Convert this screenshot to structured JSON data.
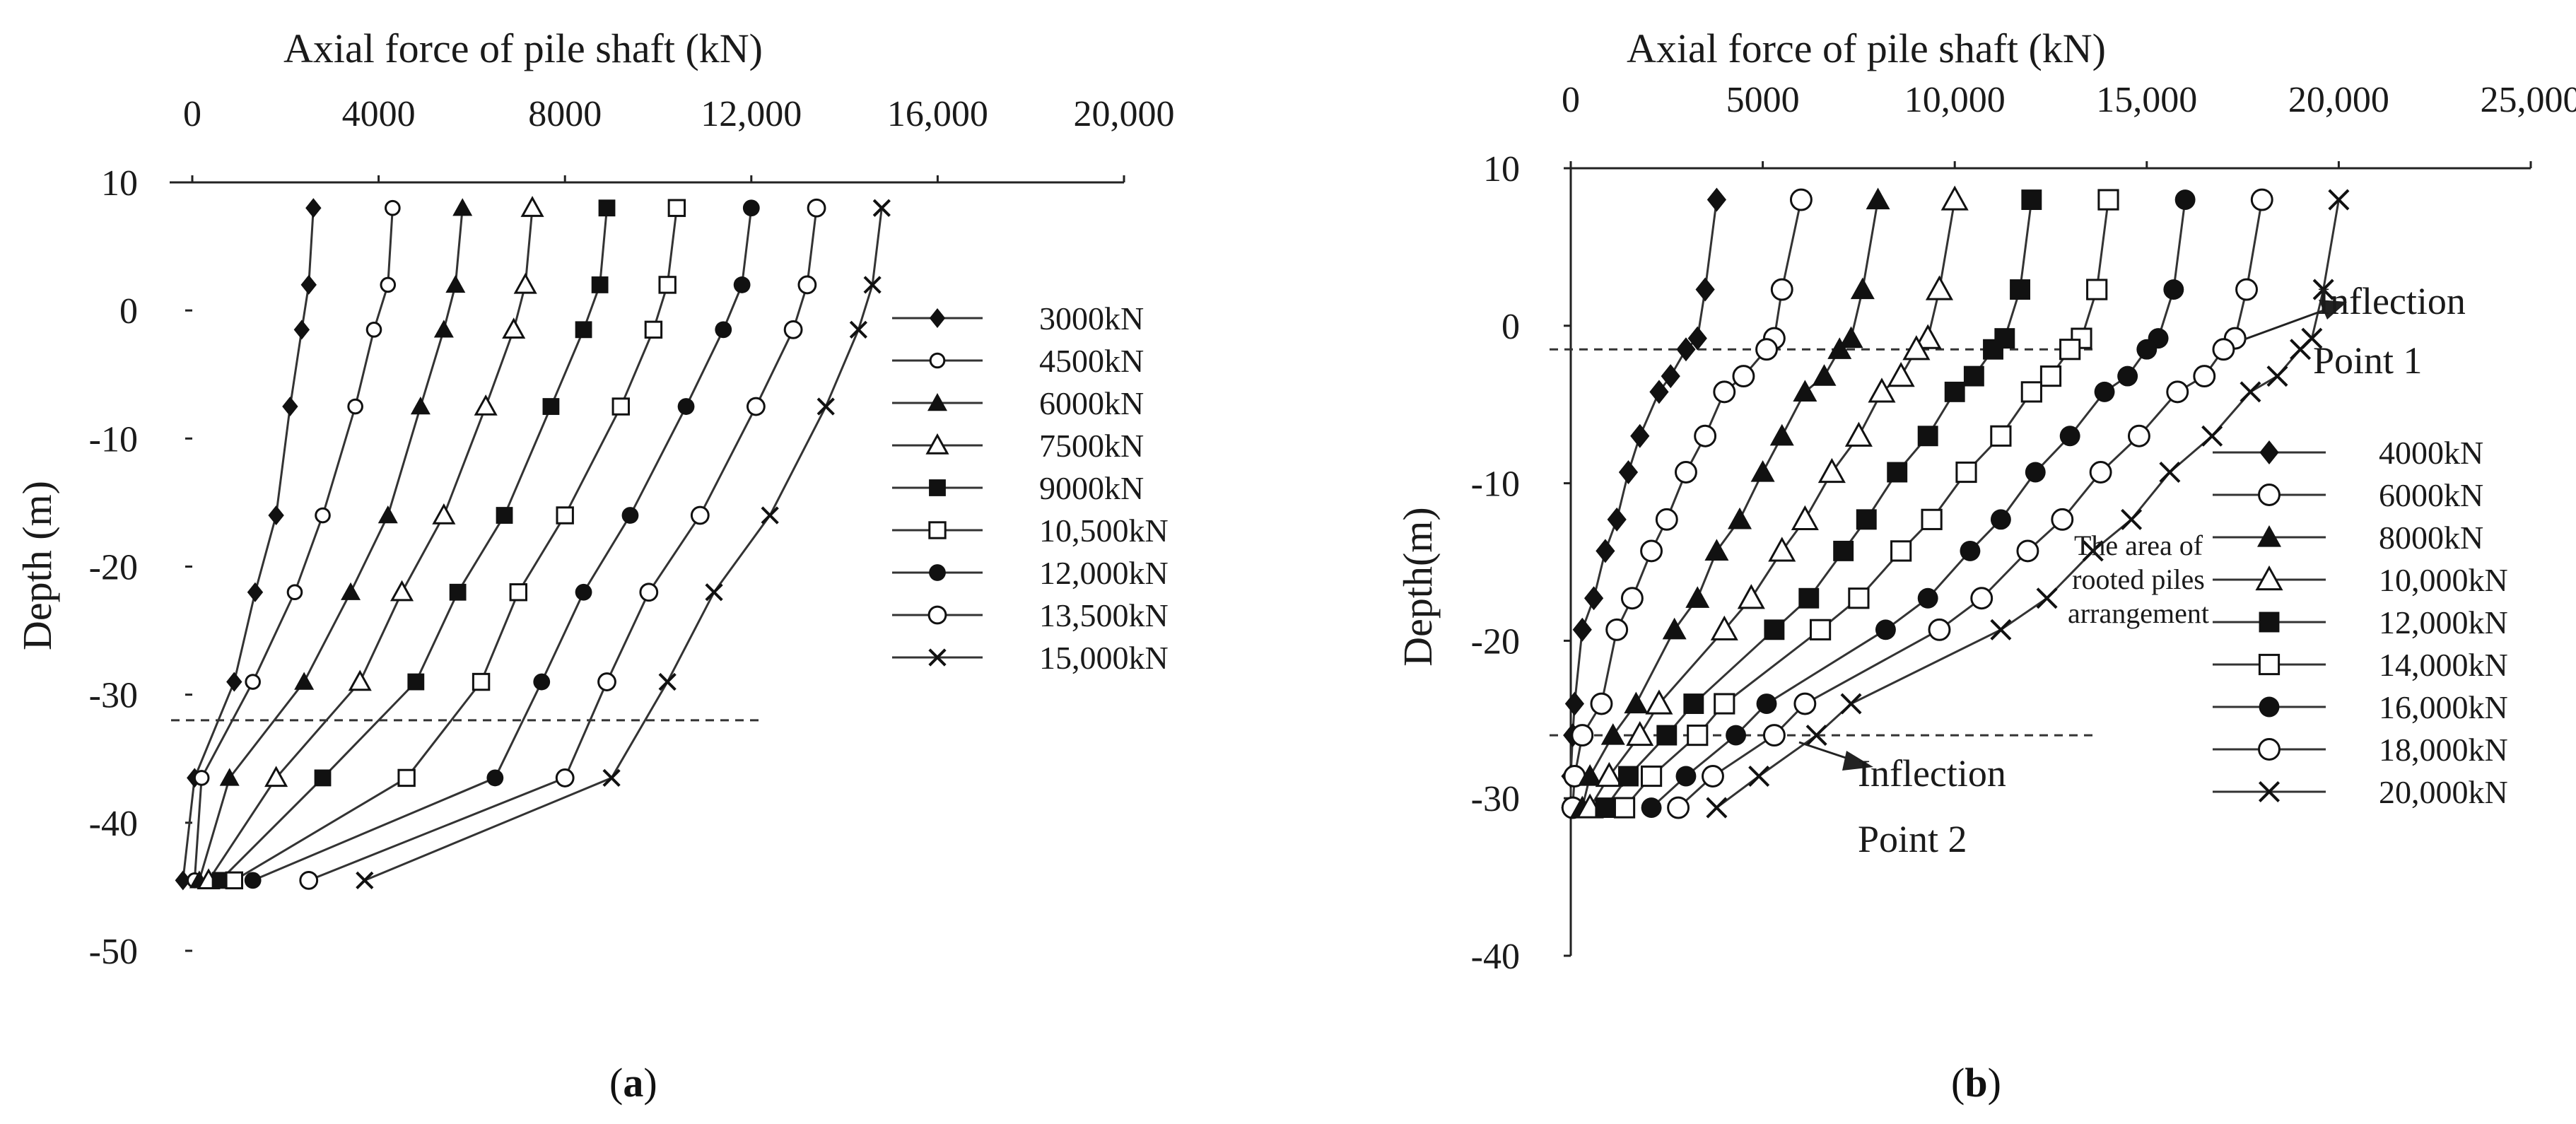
{
  "panels": [
    {
      "id": "a",
      "label_open": "(",
      "label_letter": "a",
      "label_close": ")",
      "title": "Axial force of pile shaft (kN)",
      "ylabel": "Depth (m)",
      "xlim": [
        0,
        20000
      ],
      "ylim": [
        -50,
        10
      ],
      "x_ticks": [
        0,
        4000,
        8000,
        12000,
        16000,
        20000
      ],
      "x_tick_labels": [
        "0",
        "4000",
        "8000",
        "12,000",
        "16,000",
        "20,000"
      ],
      "y_ticks": [
        10,
        0,
        -10,
        -20,
        -30,
        -40,
        -50
      ],
      "y_tick_labels": [
        "10",
        "0",
        "-10",
        "-20",
        "-30",
        "-40",
        "-50"
      ],
      "ref_lines": [
        -32
      ],
      "legend": [
        "3000kN",
        "4500kN",
        "6000kN",
        "7500kN",
        "9000kN",
        "10,500kN",
        "12,000kN",
        "13,500kN",
        "15,000kN"
      ],
      "annotations": []
    },
    {
      "id": "b",
      "label_open": "(",
      "label_letter": "b",
      "label_close": ")",
      "title": "Axial force of pile shaft (kN)",
      "ylabel": "Depth(m)",
      "xlim": [
        0,
        25000
      ],
      "ylim": [
        -40,
        10
      ],
      "x_ticks": [
        0,
        5000,
        10000,
        15000,
        20000,
        25000
      ],
      "x_tick_labels": [
        "0",
        "5000",
        "10,000",
        "15,000",
        "20,000",
        "25,000"
      ],
      "y_ticks": [
        10,
        0,
        -10,
        -20,
        -30,
        -40
      ],
      "y_tick_labels": [
        "10",
        "0",
        "-10",
        "-20",
        "-30",
        "-40"
      ],
      "ref_lines": [
        -1.5,
        -26
      ],
      "legend": [
        "4000kN",
        "6000kN",
        "8000kN",
        "10,000kN",
        "12,000kN",
        "14,000kN",
        "16,000kN",
        "18,000kN",
        "20,000kN"
      ],
      "annotations": [
        {
          "lines": [
            "Inflection",
            "Point 1"
          ],
          "size": 46
        },
        {
          "lines": [
            "The area of",
            "rooted piles",
            "arrangement"
          ],
          "size": 34
        },
        {
          "lines": [
            "Inflection",
            "Point 2"
          ],
          "size": 46
        }
      ]
    }
  ],
  "chart_data": [
    {
      "type": "line",
      "title": "Axial force of pile shaft (kN)",
      "xlabel": "Axial force of pile shaft (kN)",
      "ylabel": "Depth (m)",
      "xlim": [
        0,
        20000
      ],
      "ylim": [
        -50,
        10
      ],
      "grid": false,
      "legend_position": "right",
      "markers": [
        "diamond",
        "circle-open-small",
        "triangle",
        "triangle-open",
        "square",
        "square-open",
        "circle",
        "circle-open",
        "x"
      ],
      "series": [
        {
          "name": "3000kN",
          "x": [
            2600,
            2500,
            2350,
            2100,
            1800,
            1350,
            900,
            50,
            -200
          ],
          "y": [
            8,
            2,
            -1.5,
            -7.5,
            -16,
            -22,
            -29,
            -36.5,
            -44.5
          ]
        },
        {
          "name": "4500kN",
          "x": [
            4300,
            4200,
            3900,
            3500,
            2800,
            2200,
            1300,
            200,
            50
          ],
          "y": [
            8,
            2,
            -1.5,
            -7.5,
            -16,
            -22,
            -29,
            -36.5,
            -44.5
          ]
        },
        {
          "name": "6000kN",
          "x": [
            5800,
            5650,
            5400,
            4900,
            4200,
            3400,
            2400,
            800,
            150
          ],
          "y": [
            8,
            2,
            -1.5,
            -7.5,
            -16,
            -22,
            -29,
            -36.5,
            -44.5
          ]
        },
        {
          "name": "7500kN",
          "x": [
            7300,
            7150,
            6900,
            6300,
            5400,
            4500,
            3600,
            1800,
            350
          ],
          "y": [
            8,
            2,
            -1.5,
            -7.5,
            -16,
            -22,
            -29,
            -36.5,
            -44.5
          ]
        },
        {
          "name": "9000kN",
          "x": [
            8900,
            8750,
            8400,
            7700,
            6700,
            5700,
            4800,
            2800,
            600
          ],
          "y": [
            8,
            2,
            -1.5,
            -7.5,
            -16,
            -22,
            -29,
            -36.5,
            -44.5
          ]
        },
        {
          "name": "10,500kN",
          "x": [
            10400,
            10200,
            9900,
            9200,
            8000,
            7000,
            6200,
            4600,
            900
          ],
          "y": [
            8,
            2,
            -1.5,
            -7.5,
            -16,
            -22,
            -29,
            -36.5,
            -44.5
          ]
        },
        {
          "name": "12,000kN",
          "x": [
            12000,
            11800,
            11400,
            10600,
            9400,
            8400,
            7500,
            6500,
            1300
          ],
          "y": [
            8,
            2,
            -1.5,
            -7.5,
            -16,
            -22,
            -29,
            -36.5,
            -44.5
          ]
        },
        {
          "name": "13,500kN",
          "x": [
            13400,
            13200,
            12900,
            12100,
            10900,
            9800,
            8900,
            8000,
            2500
          ],
          "y": [
            8,
            2,
            -1.5,
            -7.5,
            -16,
            -22,
            -29,
            -36.5,
            -44.5
          ]
        },
        {
          "name": "15,000kN",
          "x": [
            14800,
            14600,
            14300,
            13600,
            12400,
            11200,
            10200,
            9000,
            3700
          ],
          "y": [
            8,
            2,
            -1.5,
            -7.5,
            -16,
            -22,
            -29,
            -36.5,
            -44.5
          ]
        }
      ]
    },
    {
      "type": "line",
      "title": "Axial force of pile shaft (kN)",
      "xlabel": "Axial force of pile shaft (kN)",
      "ylabel": "Depth(m)",
      "xlim": [
        0,
        25000
      ],
      "ylim": [
        -40,
        10
      ],
      "grid": false,
      "legend_position": "right",
      "markers": [
        "diamond",
        "circle-open",
        "triangle",
        "triangle-open",
        "square",
        "square-open",
        "circle",
        "circle-open",
        "x"
      ],
      "series": [
        {
          "name": "4000kN",
          "x": [
            3800,
            3500,
            3300,
            3000,
            2600,
            2300,
            1800,
            1500,
            1200,
            900,
            600,
            300,
            100,
            50,
            0,
            0
          ],
          "y": [
            8,
            2.3,
            -0.8,
            -1.5,
            -3.2,
            -4.2,
            -7,
            -9.3,
            -12.3,
            -14.3,
            -17.3,
            -19.3,
            -24,
            -26,
            -28.6,
            -30.6
          ]
        },
        {
          "name": "6000kN",
          "x": [
            6000,
            5500,
            5300,
            5100,
            4500,
            4000,
            3500,
            3000,
            2500,
            2100,
            1600,
            1200,
            800,
            300,
            100,
            50
          ],
          "y": [
            8,
            2.3,
            -0.8,
            -1.5,
            -3.2,
            -4.2,
            -7,
            -9.3,
            -12.3,
            -14.3,
            -17.3,
            -19.3,
            -24,
            -26,
            -28.6,
            -30.6
          ]
        },
        {
          "name": "8000kN",
          "x": [
            8000,
            7600,
            7300,
            7000,
            6600,
            6100,
            5500,
            5000,
            4400,
            3800,
            3300,
            2700,
            1700,
            1100,
            500,
            300
          ],
          "y": [
            8,
            2.3,
            -0.8,
            -1.5,
            -3.2,
            -4.2,
            -7,
            -9.3,
            -12.3,
            -14.3,
            -17.3,
            -19.3,
            -24,
            -26,
            -28.6,
            -30.6
          ]
        },
        {
          "name": "10,000kN",
          "x": [
            10000,
            9600,
            9300,
            9000,
            8600,
            8100,
            7500,
            6800,
            6100,
            5500,
            4700,
            4000,
            2300,
            1800,
            1000,
            500
          ],
          "y": [
            8,
            2.3,
            -0.8,
            -1.5,
            -3.2,
            -4.2,
            -7,
            -9.3,
            -12.3,
            -14.3,
            -17.3,
            -19.3,
            -24,
            -26,
            -28.6,
            -30.6
          ]
        },
        {
          "name": "12,000kN",
          "x": [
            12000,
            11700,
            11300,
            11000,
            10500,
            10000,
            9300,
            8500,
            7700,
            7100,
            6200,
            5300,
            3200,
            2500,
            1500,
            900
          ],
          "y": [
            8,
            2.3,
            -0.8,
            -1.5,
            -3.2,
            -4.2,
            -7,
            -9.3,
            -12.3,
            -14.3,
            -17.3,
            -19.3,
            -24,
            -26,
            -28.6,
            -30.6
          ]
        },
        {
          "name": "14,000kN",
          "x": [
            14000,
            13700,
            13300,
            13000,
            12500,
            12000,
            11200,
            10300,
            9400,
            8600,
            7500,
            6500,
            4000,
            3300,
            2100,
            1400
          ],
          "y": [
            8,
            2.3,
            -0.8,
            -1.5,
            -3.2,
            -4.2,
            -7,
            -9.3,
            -12.3,
            -14.3,
            -17.3,
            -19.3,
            -24,
            -26,
            -28.6,
            -30.6
          ]
        },
        {
          "name": "16,000kN",
          "x": [
            16000,
            15700,
            15300,
            15000,
            14500,
            13900,
            13000,
            12100,
            11200,
            10400,
            9300,
            8200,
            5100,
            4300,
            3000,
            2100
          ],
          "y": [
            8,
            2.3,
            -0.8,
            -1.5,
            -3.2,
            -4.2,
            -7,
            -9.3,
            -12.3,
            -14.3,
            -17.3,
            -19.3,
            -24,
            -26,
            -28.6,
            -30.6
          ]
        },
        {
          "name": "18,000kN",
          "x": [
            18000,
            17600,
            17300,
            17000,
            16500,
            15800,
            14800,
            13800,
            12800,
            11900,
            10700,
            9600,
            6100,
            5300,
            3700,
            2800
          ],
          "y": [
            8,
            2.3,
            -0.8,
            -1.5,
            -3.2,
            -4.2,
            -7,
            -9.3,
            -12.3,
            -14.3,
            -17.3,
            -19.3,
            -24,
            -26,
            -28.6,
            -30.6
          ]
        },
        {
          "name": "20,000kN",
          "x": [
            20000,
            19600,
            19300,
            19000,
            18400,
            17700,
            16700,
            15600,
            14600,
            13600,
            12400,
            11200,
            7300,
            6400,
            4900,
            3800
          ],
          "y": [
            8,
            2.3,
            -0.8,
            -1.5,
            -3.2,
            -4.2,
            -7,
            -9.3,
            -12.3,
            -14.3,
            -17.3,
            -19.3,
            -24,
            -26,
            -28.6,
            -30.6
          ]
        }
      ]
    }
  ]
}
